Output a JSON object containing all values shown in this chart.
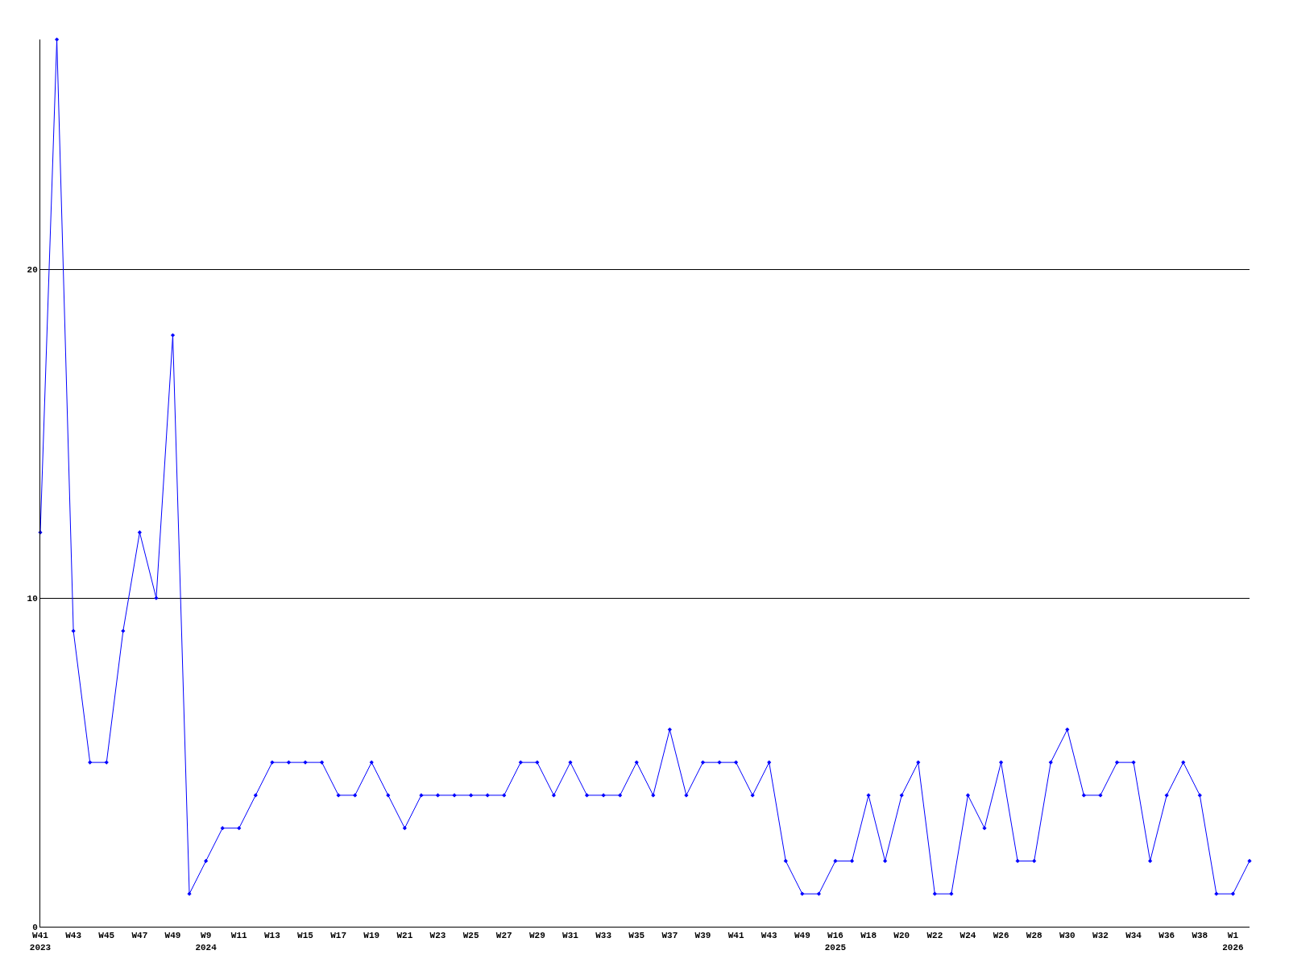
{
  "chart_data": {
    "type": "line",
    "categories": [
      "W41\n2023",
      null,
      "W43",
      null,
      "W45",
      null,
      "W47",
      null,
      "W49",
      null,
      "W9\n2024",
      null,
      "W11",
      null,
      "W13",
      null,
      "W15",
      null,
      "W17",
      null,
      "W19",
      null,
      "W21",
      null,
      "W23",
      null,
      "W25",
      null,
      "W27",
      null,
      "W29",
      null,
      "W31",
      null,
      "W33",
      null,
      "W35",
      null,
      "W37",
      null,
      "W39",
      null,
      "W41",
      null,
      "W43",
      null,
      "W49",
      null,
      "W16\n2025",
      null,
      "W18",
      null,
      "W20",
      null,
      "W22",
      null,
      "W24",
      null,
      "W26",
      null,
      "W28",
      null,
      "W30",
      null,
      "W32",
      null,
      "W34",
      null,
      "W36",
      null,
      "W38",
      null,
      "W1\n2026",
      null
    ],
    "series": [
      {
        "color": "#0000ff",
        "values": [
          12,
          27,
          9,
          5,
          5,
          9,
          12,
          10,
          18,
          1,
          2,
          3,
          3,
          4,
          5,
          5,
          5,
          5,
          4,
          4,
          5,
          4,
          3,
          4,
          4,
          4,
          4,
          4,
          4,
          5,
          5,
          4,
          5,
          4,
          4,
          4,
          5,
          4,
          6,
          4,
          5,
          5,
          5,
          4,
          5,
          2,
          1,
          1,
          2,
          2,
          4,
          2,
          4,
          5,
          1,
          1,
          4,
          3,
          5,
          2,
          2,
          5,
          6,
          4,
          4,
          5,
          5,
          2,
          4,
          5,
          4,
          1,
          1,
          2
        ]
      }
    ],
    "ylim": [
      0,
      27
    ],
    "yticks": [
      0,
      10,
      20
    ],
    "grid": "y",
    "marker": "diamond",
    "line_style": "solid",
    "legend": false
  }
}
